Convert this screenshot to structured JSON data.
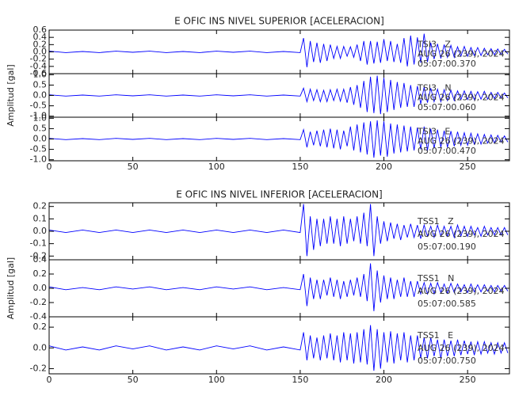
{
  "chart_data": [
    {
      "type": "line",
      "title": "E OFIC INS NIVEL SUPERIOR [ACELERACION]",
      "ylabel": "Amplitud [gal]",
      "xlim": [
        0,
        275
      ],
      "xticks": [
        0,
        50,
        100,
        150,
        200,
        250
      ],
      "x": [
        0,
        10,
        20,
        30,
        40,
        50,
        60,
        70,
        80,
        90,
        100,
        110,
        120,
        130,
        140,
        150,
        152,
        154,
        156,
        158,
        160,
        162,
        164,
        166,
        168,
        170,
        172,
        174,
        176,
        178,
        180,
        182,
        184,
        186,
        188,
        190,
        192,
        194,
        196,
        198,
        200,
        202,
        204,
        206,
        208,
        210,
        212,
        214,
        216,
        218,
        220,
        222,
        224,
        226,
        228,
        230,
        232,
        234,
        236,
        238,
        240,
        242,
        244,
        246,
        248,
        250,
        252,
        254,
        256,
        258,
        260,
        262,
        264,
        266,
        268,
        270,
        272,
        274
      ],
      "panels": [
        {
          "name": "TSI3   Z",
          "date": "AUG 26 (239), 2024",
          "time": "05:07:00.370",
          "color": "#0000ff",
          "ylim": [
            -0.6,
            0.6
          ],
          "yticks": [
            0.6,
            0.4,
            0.2,
            {
              "value": 0,
              "label": "0.0"
            },
            -0.2,
            -0.4,
            -0.6
          ],
          "values": [
            0.02,
            -0.02,
            0.01,
            -0.02,
            0.02,
            -0.01,
            0.02,
            -0.02,
            0.01,
            -0.02,
            0.02,
            -0.01,
            0.02,
            -0.02,
            0.01,
            -0.02,
            0.38,
            -0.42,
            0.3,
            -0.28,
            0.25,
            -0.3,
            0.22,
            -0.25,
            0.2,
            -0.18,
            0.15,
            -0.18,
            0.15,
            -0.12,
            0.14,
            -0.15,
            0.2,
            -0.25,
            0.3,
            -0.35,
            0.3,
            -0.32,
            0.28,
            -0.3,
            0.35,
            -0.25,
            0.3,
            -0.28,
            0.22,
            -0.3,
            0.38,
            -0.4,
            0.45,
            -0.35,
            0.4,
            -0.3,
            0.5,
            -0.28,
            0.25,
            -0.2,
            0.22,
            -0.18,
            0.2,
            -0.15,
            0.18,
            -0.15,
            0.14,
            -0.12,
            0.15,
            -0.12,
            0.12,
            -0.1,
            0.12,
            -0.1,
            0.1,
            -0.08,
            0.09,
            -0.08,
            0.08,
            -0.07,
            0.07,
            -0.06
          ]
        },
        {
          "name": "TSI3   N",
          "date": "AUG 26 (239), 2024",
          "time": "05:07:00.060",
          "color": "#0000ff",
          "ylim": [
            -1.05,
            1.05
          ],
          "yticks": [
            {
              "value": 1,
              "label": "1.0"
            },
            0.5,
            {
              "value": 0,
              "label": "0.0"
            },
            -0.5,
            {
              "value": -1,
              "label": "-1.0"
            }
          ],
          "values": [
            0.03,
            -0.03,
            0.02,
            -0.03,
            0.03,
            -0.02,
            0.03,
            -0.03,
            0.02,
            -0.03,
            0.03,
            -0.02,
            0.03,
            -0.03,
            0.02,
            -0.03,
            0.35,
            -0.3,
            0.3,
            -0.25,
            0.28,
            -0.3,
            0.25,
            -0.3,
            0.28,
            -0.25,
            0.3,
            -0.28,
            0.3,
            -0.35,
            0.4,
            -0.45,
            0.5,
            -0.6,
            0.7,
            -0.8,
            0.9,
            -0.85,
            0.95,
            -0.9,
            0.85,
            -0.8,
            0.75,
            -0.7,
            0.65,
            -0.6,
            0.6,
            -0.55,
            0.5,
            -0.55,
            0.45,
            -0.4,
            0.4,
            -0.35,
            0.35,
            -0.3,
            0.3,
            -0.3,
            0.28,
            -0.25,
            0.25,
            -0.25,
            0.22,
            -0.2,
            0.22,
            -0.2,
            0.2,
            -0.2,
            0.18,
            -0.18,
            0.2,
            -0.18,
            0.15,
            -0.15,
            0.15,
            -0.12,
            0.12,
            -0.12
          ]
        },
        {
          "name": "TSI3   E",
          "date": "AUG 26 (239), 2024",
          "time": "05:07:00.470",
          "color": "#0000ff",
          "ylim": [
            -1.05,
            1.05
          ],
          "yticks": [
            {
              "value": 1,
              "label": "1.0"
            },
            0.5,
            {
              "value": 0,
              "label": "0.0"
            },
            -0.5,
            {
              "value": -1,
              "label": "-1.0"
            }
          ],
          "values": [
            0.03,
            -0.03,
            0.02,
            -0.03,
            0.03,
            -0.02,
            0.03,
            -0.03,
            0.02,
            -0.03,
            0.03,
            -0.02,
            0.03,
            -0.03,
            0.02,
            -0.03,
            0.45,
            -0.4,
            0.35,
            -0.3,
            0.4,
            -0.35,
            0.45,
            -0.4,
            0.5,
            -0.45,
            0.45,
            -0.5,
            0.4,
            -0.35,
            0.6,
            -0.55,
            0.7,
            -0.65,
            0.8,
            -0.75,
            0.85,
            -0.9,
            0.9,
            -0.8,
            0.85,
            -0.85,
            0.75,
            -0.7,
            0.7,
            -0.65,
            0.65,
            -0.6,
            0.6,
            -0.55,
            0.55,
            -0.5,
            0.6,
            -0.55,
            0.5,
            -0.45,
            0.45,
            -0.4,
            0.4,
            -0.4,
            0.38,
            -0.35,
            0.35,
            -0.3,
            0.3,
            -0.3,
            0.28,
            -0.25,
            0.25,
            -0.25,
            0.22,
            -0.2,
            0.2,
            -0.2,
            0.18,
            -0.15,
            0.15,
            -0.15
          ]
        }
      ]
    },
    {
      "type": "line",
      "title": "E OFIC INS NIVEL INFERIOR [ACELERACION]",
      "ylabel": "Amplitud [gal]",
      "xlim": [
        0,
        275
      ],
      "xticks": [
        0,
        50,
        100,
        150,
        200,
        250
      ],
      "x": [
        0,
        10,
        20,
        30,
        40,
        50,
        60,
        70,
        80,
        90,
        100,
        110,
        120,
        130,
        140,
        150,
        152,
        154,
        156,
        158,
        160,
        162,
        164,
        166,
        168,
        170,
        172,
        174,
        176,
        178,
        180,
        182,
        184,
        186,
        188,
        190,
        192,
        194,
        196,
        198,
        200,
        202,
        204,
        206,
        208,
        210,
        212,
        214,
        216,
        218,
        220,
        222,
        224,
        226,
        228,
        230,
        232,
        234,
        236,
        238,
        240,
        242,
        244,
        246,
        248,
        250,
        252,
        254,
        256,
        258,
        260,
        262,
        264,
        266,
        268,
        270,
        272,
        274
      ],
      "panels": [
        {
          "name": "TSS1   Z",
          "date": "AUG 26 (239), 2024",
          "time": "05:07:00.190",
          "color": "#0000ff",
          "ylim": [
            -0.23,
            0.23
          ],
          "yticks": [
            0.2,
            0.1,
            {
              "value": 0,
              "label": "0.0"
            },
            -0.1,
            -0.2
          ],
          "values": [
            0.01,
            -0.01,
            0.01,
            -0.01,
            0.01,
            -0.01,
            0.01,
            -0.01,
            0.01,
            -0.01,
            0.01,
            -0.01,
            0.01,
            -0.01,
            0.01,
            -0.01,
            0.22,
            -0.2,
            0.12,
            -0.15,
            0.1,
            -0.12,
            0.1,
            -0.1,
            0.12,
            -0.1,
            0.1,
            -0.12,
            0.12,
            -0.1,
            0.1,
            -0.08,
            0.12,
            -0.1,
            0.15,
            -0.12,
            0.22,
            -0.2,
            0.12,
            -0.1,
            0.08,
            -0.08,
            0.07,
            -0.06,
            0.06,
            -0.07,
            0.05,
            -0.05,
            0.06,
            -0.05,
            0.05,
            -0.06,
            0.05,
            -0.04,
            0.04,
            -0.05,
            0.05,
            -0.04,
            0.04,
            -0.04,
            0.04,
            -0.05,
            0.05,
            -0.04,
            0.04,
            -0.04,
            0.04,
            -0.03,
            0.03,
            -0.04,
            0.04,
            -0.03,
            0.03,
            -0.03,
            0.03,
            -0.03,
            0.03,
            -0.03
          ]
        },
        {
          "name": "TSS1   N",
          "date": "AUG 26 (239), 2024",
          "time": "05:07:00.585",
          "color": "#0000ff",
          "ylim": [
            -0.4,
            0.4
          ],
          "yticks": [
            0.4,
            0.2,
            {
              "value": 0,
              "label": "0.0"
            },
            -0.2,
            -0.4
          ],
          "values": [
            0.02,
            -0.02,
            0.01,
            -0.02,
            0.02,
            -0.01,
            0.02,
            -0.02,
            0.01,
            -0.02,
            0.02,
            -0.01,
            0.02,
            -0.02,
            0.01,
            -0.02,
            0.2,
            -0.25,
            0.15,
            -0.15,
            0.12,
            -0.15,
            0.12,
            -0.1,
            0.15,
            -0.12,
            0.12,
            -0.15,
            0.1,
            -0.12,
            0.12,
            -0.1,
            0.15,
            -0.12,
            0.2,
            -0.18,
            0.35,
            -0.32,
            0.25,
            -0.2,
            0.18,
            -0.15,
            0.15,
            -0.15,
            0.12,
            -0.12,
            0.15,
            -0.12,
            0.1,
            -0.12,
            0.1,
            -0.08,
            0.08,
            -0.08,
            0.07,
            -0.08,
            0.08,
            -0.06,
            0.06,
            -0.07,
            0.07,
            -0.06,
            0.06,
            -0.05,
            0.05,
            -0.06,
            0.06,
            -0.05,
            0.05,
            -0.05,
            0.05,
            -0.04,
            0.04,
            -0.05,
            0.04,
            -0.04,
            0.04,
            -0.04
          ]
        },
        {
          "name": "TSS1   E",
          "date": "AUG 26 (239), 2024",
          "time": "05:07:00.750",
          "color": "#0000ff",
          "ylim": [
            -0.25,
            0.3
          ],
          "yticks": [
            0.2,
            {
              "value": 0,
              "label": "0.0"
            },
            -0.2
          ],
          "values": [
            0.02,
            -0.02,
            0.01,
            -0.02,
            0.02,
            -0.01,
            0.02,
            -0.02,
            0.01,
            -0.02,
            0.02,
            -0.01,
            0.02,
            -0.02,
            0.01,
            -0.02,
            0.15,
            -0.12,
            0.12,
            -0.1,
            0.1,
            -0.12,
            0.12,
            -0.1,
            0.14,
            -0.12,
            0.12,
            -0.14,
            0.15,
            -0.12,
            0.14,
            -0.15,
            0.15,
            -0.14,
            0.18,
            -0.16,
            0.22,
            -0.22,
            0.18,
            -0.2,
            0.15,
            -0.14,
            0.16,
            -0.15,
            0.14,
            -0.12,
            0.15,
            -0.14,
            0.12,
            -0.12,
            0.12,
            -0.1,
            0.1,
            -0.1,
            0.1,
            -0.08,
            0.08,
            -0.1,
            0.08,
            -0.08,
            0.07,
            -0.08,
            0.08,
            -0.07,
            0.07,
            -0.06,
            0.06,
            -0.07,
            0.06,
            -0.06,
            0.06,
            -0.05,
            0.05,
            -0.06,
            0.05,
            -0.05,
            0.05,
            -0.05
          ]
        }
      ]
    }
  ]
}
